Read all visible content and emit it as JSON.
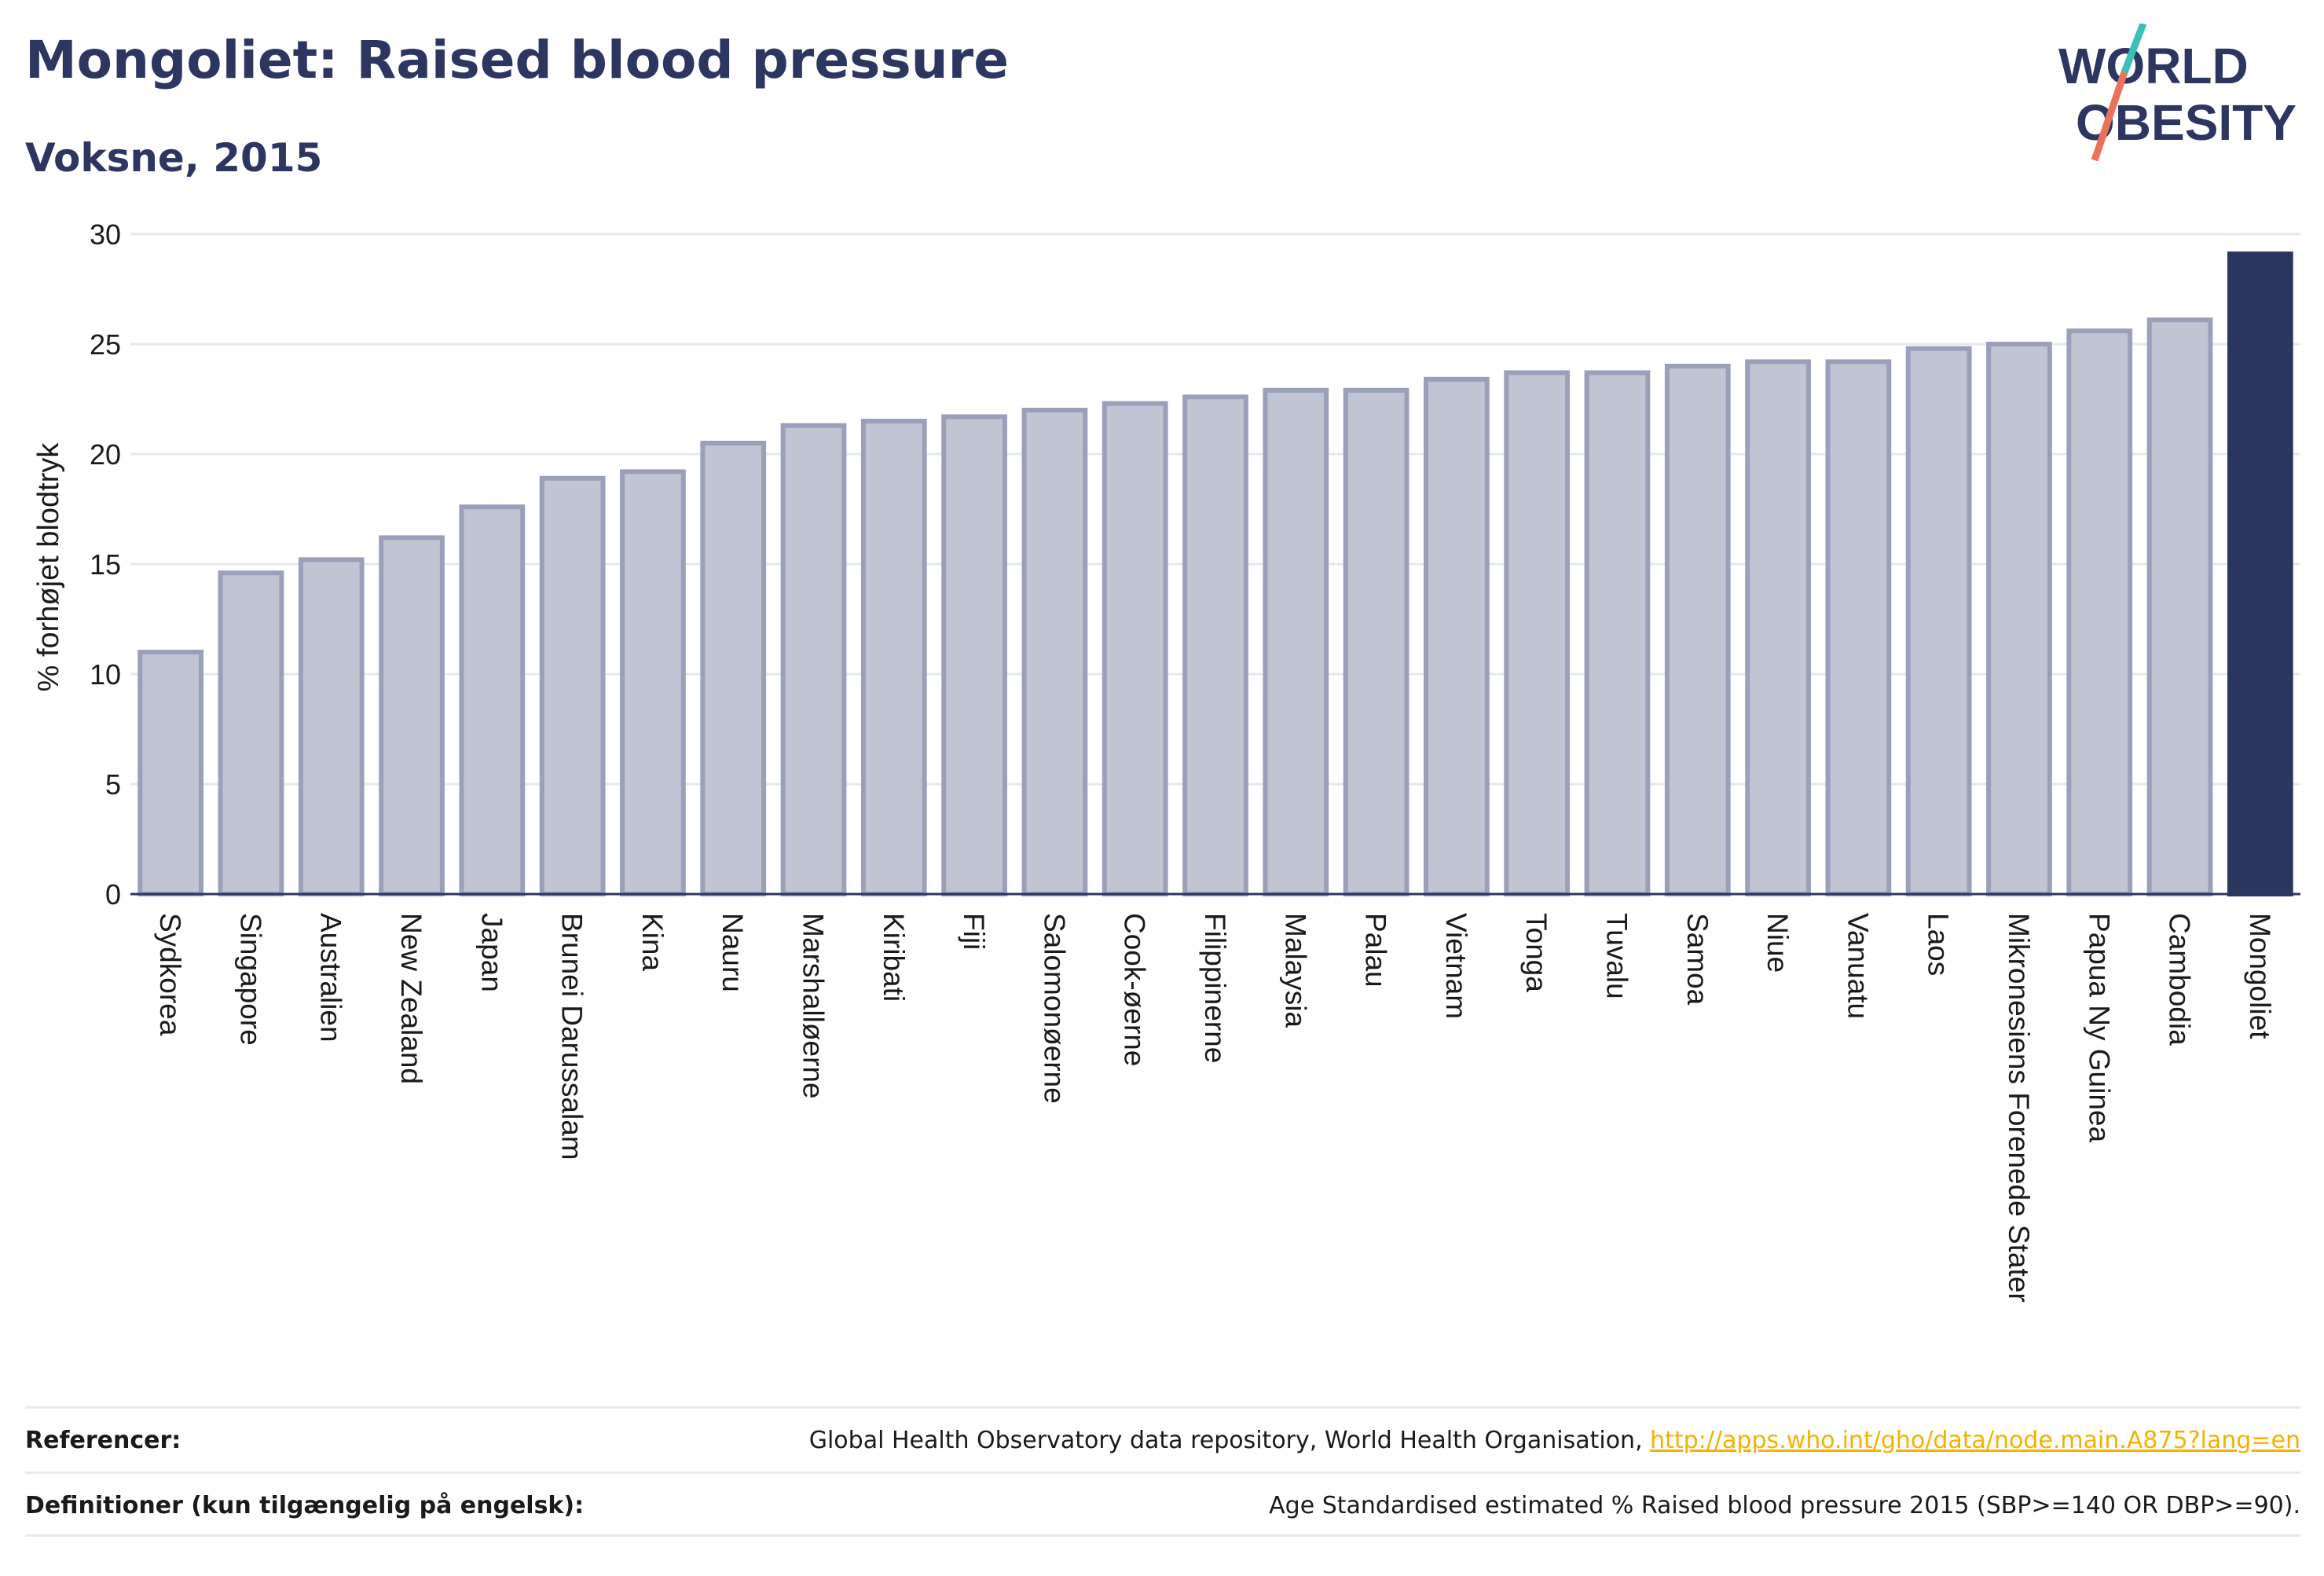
{
  "header": {
    "title": "Mongoliet: Raised blood pressure",
    "subtitle": "Voksne, 2015"
  },
  "logo": {
    "line1": "WORLD",
    "line2": "OBESITY",
    "text_color": "#2d3561",
    "slash_color_top": "#3bbfb6",
    "slash_color_bottom": "#e8735a"
  },
  "colors": {
    "bar_fill": "#c0c4d3",
    "bar_stroke": "#9aa0ba",
    "highlight_fill": "#2b365e",
    "grid": "#e6e8ef",
    "axis": "#2d3561"
  },
  "chart_data": {
    "type": "bar",
    "ylabel": "% forhøjet blodtryk",
    "ylim": [
      0,
      30
    ],
    "yticks": [
      0,
      5,
      10,
      15,
      20,
      25,
      30
    ],
    "grid": true,
    "highlight": "Mongoliet",
    "categories": [
      "Sydkorea",
      "Singapore",
      "Australien",
      "New Zealand",
      "Japan",
      "Brunei Darussalam",
      "Kina",
      "Nauru",
      "Marshalløerne",
      "Kiribati",
      "Fiji",
      "Salomonøerne",
      "Cook-øerne",
      "Filippinerne",
      "Malaysia",
      "Palau",
      "Vietnam",
      "Tonga",
      "Tuvalu",
      "Samoa",
      "Niue",
      "Vanuatu",
      "Laos",
      "Mikronesiens Forenede Stater",
      "Papua Ny Guinea",
      "Cambodia",
      "Mongoliet"
    ],
    "values": [
      11.0,
      14.6,
      15.2,
      16.2,
      17.6,
      18.9,
      19.2,
      20.5,
      21.3,
      21.5,
      21.7,
      22.0,
      22.3,
      22.6,
      22.9,
      22.9,
      23.4,
      23.7,
      23.7,
      24.0,
      24.2,
      24.2,
      24.8,
      25.0,
      25.6,
      26.1,
      29.1
    ]
  },
  "footer": {
    "references_label": "Referencer:",
    "references_text": "Global Health Observatory data repository, World Health Organisation, ",
    "references_link": "http://apps.who.int/gho/data/node.main.A875?lang=en",
    "definitions_label": "Definitioner (kun tilgængelig på engelsk):",
    "definitions_text": "Age Standardised estimated % Raised blood pressure 2015 (SBP>=140 OR DBP>=90)."
  }
}
